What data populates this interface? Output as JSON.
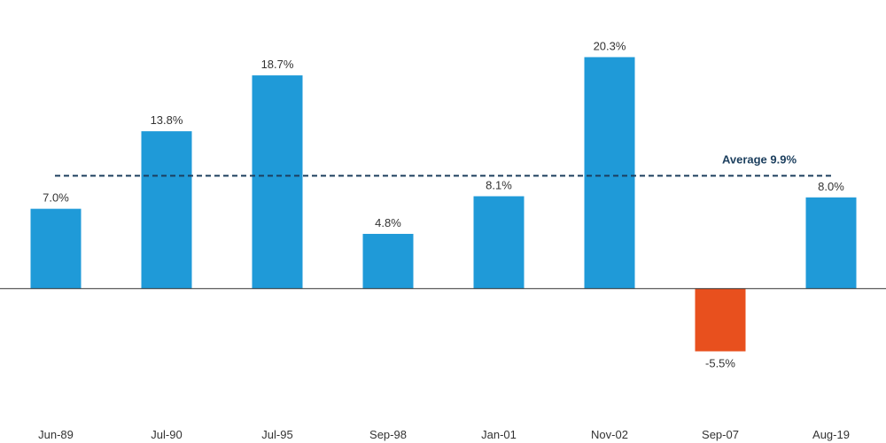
{
  "chart_data": {
    "type": "bar",
    "title": "",
    "xlabel": "",
    "ylabel": "",
    "categories": [
      "Jun-89",
      "Jul-90",
      "Jul-95",
      "Sep-98",
      "Jan-01",
      "Nov-02",
      "Sep-07",
      "Aug-19"
    ],
    "values": [
      7.0,
      13.8,
      18.7,
      4.8,
      8.1,
      20.3,
      -5.5,
      8.0
    ],
    "value_labels": [
      "7.0%",
      "13.8%",
      "18.7%",
      "4.8%",
      "8.1%",
      "20.3%",
      "-5.5%",
      "8.0%"
    ],
    "ylim": [
      -9.5,
      25
    ],
    "grid": false,
    "average": {
      "value": 9.9,
      "label": "Average 9.9%"
    },
    "colors": {
      "positive": "#1f9ad8",
      "negative": "#e8501e",
      "average_line": "#1c3f5e",
      "axis": "#333333"
    }
  }
}
